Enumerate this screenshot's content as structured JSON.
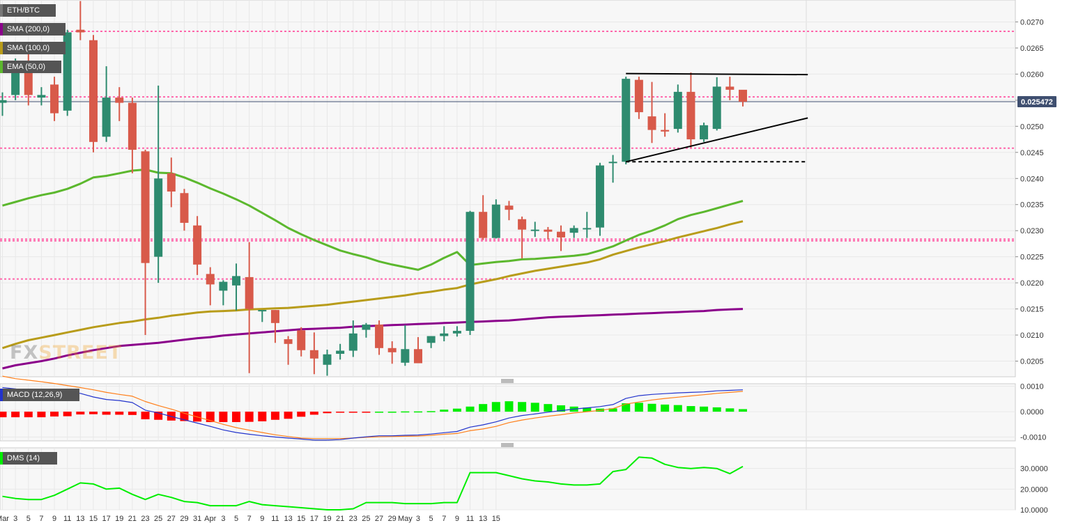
{
  "colors": {
    "up": "#2e8b6f",
    "down": "#d85a4a",
    "sma200": "#8b008b",
    "sma100": "#b89c1a",
    "ema50": "#5cb82e",
    "level_line": "#ff66aa",
    "price_line": "#3f4f70",
    "macd_line": "#2233cc",
    "signal_line": "#ff7f1a",
    "hist_neg": "#ff0000",
    "hist_pos": "#00ee00",
    "dms_plus": "#00ee00",
    "dms_minus": "#ee1111",
    "adx": "#1122aa",
    "pattern": "#000000"
  },
  "legend": {
    "symbol": "ETH/BTC",
    "sma200": "SMA (200,0)",
    "sma100": "SMA (100,0)",
    "ema50": "EMA (50,0)"
  },
  "watermark": {
    "part1": "FX",
    "part2": "STREET"
  },
  "price_label": "0.025472",
  "x_ticks": [
    "Mar",
    "3",
    "5",
    "7",
    "9",
    "11",
    "13",
    "15",
    "17",
    "19",
    "21",
    "23",
    "25",
    "27",
    "29",
    "31",
    "Apr",
    "3",
    "5",
    "7",
    "9",
    "11",
    "13",
    "15",
    "17",
    "19",
    "21",
    "23",
    "25",
    "27",
    "29",
    "May",
    "3",
    "5",
    "7",
    "9",
    "11",
    "13",
    "15"
  ],
  "chart_data": [
    {
      "type": "candlestick",
      "title": "ETH/BTC",
      "y_ticks": [
        "0.0205",
        "0.0210",
        "0.0215",
        "0.0220",
        "0.0225",
        "0.0230",
        "0.0235",
        "0.0240",
        "0.0245",
        "0.0250",
        "0.0255",
        "0.0260",
        "0.0265",
        "0.0270"
      ],
      "ylim": [
        0.0202,
        0.02742
      ],
      "last_price": 0.025472,
      "candles": [
        {
          "o": 0.02545,
          "h": 0.02565,
          "l": 0.0252,
          "c": 0.0255
        },
        {
          "o": 0.0256,
          "h": 0.0263,
          "l": 0.0255,
          "c": 0.0261
        },
        {
          "o": 0.0261,
          "h": 0.0264,
          "l": 0.0254,
          "c": 0.0256
        },
        {
          "o": 0.02555,
          "h": 0.02575,
          "l": 0.0254,
          "c": 0.0256
        },
        {
          "o": 0.0258,
          "h": 0.02595,
          "l": 0.0251,
          "c": 0.02525
        },
        {
          "o": 0.0253,
          "h": 0.02685,
          "l": 0.0252,
          "c": 0.0268
        },
        {
          "o": 0.02685,
          "h": 0.0274,
          "l": 0.02665,
          "c": 0.0268
        },
        {
          "o": 0.02665,
          "h": 0.02675,
          "l": 0.0245,
          "c": 0.0247
        },
        {
          "o": 0.0248,
          "h": 0.02615,
          "l": 0.0247,
          "c": 0.02555
        },
        {
          "o": 0.02555,
          "h": 0.02575,
          "l": 0.0251,
          "c": 0.02545
        },
        {
          "o": 0.02545,
          "h": 0.02555,
          "l": 0.0241,
          "c": 0.02455
        },
        {
          "o": 0.02452,
          "h": 0.02455,
          "l": 0.021,
          "c": 0.02238
        },
        {
          "o": 0.0225,
          "h": 0.02578,
          "l": 0.022,
          "c": 0.024
        },
        {
          "o": 0.0241,
          "h": 0.0244,
          "l": 0.02345,
          "c": 0.02375
        },
        {
          "o": 0.02372,
          "h": 0.0238,
          "l": 0.023,
          "c": 0.02315
        },
        {
          "o": 0.0231,
          "h": 0.02328,
          "l": 0.02215,
          "c": 0.02235
        },
        {
          "o": 0.02217,
          "h": 0.0223,
          "l": 0.02157,
          "c": 0.02197
        },
        {
          "o": 0.02185,
          "h": 0.02205,
          "l": 0.02157,
          "c": 0.02202
        },
        {
          "o": 0.02195,
          "h": 0.02237,
          "l": 0.02147,
          "c": 0.02213
        },
        {
          "o": 0.02211,
          "h": 0.02278,
          "l": 0.02027,
          "c": 0.0215
        },
        {
          "o": 0.02148,
          "h": 0.02148,
          "l": 0.02125,
          "c": 0.02148
        },
        {
          "o": 0.02148,
          "h": 0.02148,
          "l": 0.02085,
          "c": 0.02123
        },
        {
          "o": 0.02092,
          "h": 0.02098,
          "l": 0.02043,
          "c": 0.02083
        },
        {
          "o": 0.02109,
          "h": 0.02115,
          "l": 0.02059,
          "c": 0.02071
        },
        {
          "o": 0.02071,
          "h": 0.02105,
          "l": 0.02025,
          "c": 0.02055
        },
        {
          "o": 0.02043,
          "h": 0.02072,
          "l": 0.02022,
          "c": 0.02063
        },
        {
          "o": 0.02064,
          "h": 0.02083,
          "l": 0.02053,
          "c": 0.0207
        },
        {
          "o": 0.0207,
          "h": 0.02128,
          "l": 0.02058,
          "c": 0.02103
        },
        {
          "o": 0.0211,
          "h": 0.02123,
          "l": 0.02095,
          "c": 0.0212
        },
        {
          "o": 0.0212,
          "h": 0.02128,
          "l": 0.02062,
          "c": 0.02075
        },
        {
          "o": 0.02075,
          "h": 0.02088,
          "l": 0.02045,
          "c": 0.02067
        },
        {
          "o": 0.02047,
          "h": 0.02119,
          "l": 0.02041,
          "c": 0.02073
        },
        {
          "o": 0.02073,
          "h": 0.02096,
          "l": 0.0205,
          "c": 0.02046
        },
        {
          "o": 0.02085,
          "h": 0.02098,
          "l": 0.02075,
          "c": 0.02098
        },
        {
          "o": 0.02098,
          "h": 0.02117,
          "l": 0.02088,
          "c": 0.02103
        },
        {
          "o": 0.02103,
          "h": 0.02117,
          "l": 0.02097,
          "c": 0.02108
        },
        {
          "o": 0.02108,
          "h": 0.02338,
          "l": 0.021,
          "c": 0.02336
        },
        {
          "o": 0.02336,
          "h": 0.02368,
          "l": 0.02282,
          "c": 0.02286
        },
        {
          "o": 0.02286,
          "h": 0.0236,
          "l": 0.02285,
          "c": 0.0235
        },
        {
          "o": 0.02348,
          "h": 0.02357,
          "l": 0.0232,
          "c": 0.0234
        },
        {
          "o": 0.02322,
          "h": 0.02327,
          "l": 0.02247,
          "c": 0.02302
        },
        {
          "o": 0.02302,
          "h": 0.02317,
          "l": 0.02288,
          "c": 0.02302
        },
        {
          "o": 0.02302,
          "h": 0.02307,
          "l": 0.02283,
          "c": 0.02298
        },
        {
          "o": 0.02298,
          "h": 0.0231,
          "l": 0.02261,
          "c": 0.02287
        },
        {
          "o": 0.02296,
          "h": 0.0231,
          "l": 0.02286,
          "c": 0.02305
        },
        {
          "o": 0.02305,
          "h": 0.02336,
          "l": 0.02286,
          "c": 0.02305
        },
        {
          "o": 0.02306,
          "h": 0.0243,
          "l": 0.0229,
          "c": 0.02425
        },
        {
          "o": 0.02432,
          "h": 0.02445,
          "l": 0.02392,
          "c": 0.02432
        },
        {
          "o": 0.02432,
          "h": 0.02595,
          "l": 0.02427,
          "c": 0.02591
        },
        {
          "o": 0.02589,
          "h": 0.02595,
          "l": 0.02514,
          "c": 0.02527
        },
        {
          "o": 0.02519,
          "h": 0.02585,
          "l": 0.02468,
          "c": 0.02493
        },
        {
          "o": 0.02493,
          "h": 0.02525,
          "l": 0.0248,
          "c": 0.0249
        },
        {
          "o": 0.02495,
          "h": 0.0258,
          "l": 0.02488,
          "c": 0.02566
        },
        {
          "o": 0.02566,
          "h": 0.02603,
          "l": 0.02459,
          "c": 0.02475
        },
        {
          "o": 0.02475,
          "h": 0.02507,
          "l": 0.0247,
          "c": 0.02502
        },
        {
          "o": 0.02495,
          "h": 0.02594,
          "l": 0.02492,
          "c": 0.02576
        },
        {
          "o": 0.02576,
          "h": 0.02595,
          "l": 0.0255,
          "c": 0.0257
        },
        {
          "o": 0.0257,
          "h": 0.02568,
          "l": 0.02538,
          "c": 0.02547
        }
      ],
      "ema50": [
        0.02348,
        0.02355,
        0.02362,
        0.02368,
        0.02373,
        0.0238,
        0.0239,
        0.02402,
        0.02405,
        0.0241,
        0.02415,
        0.02417,
        0.02411,
        0.0241,
        0.02402,
        0.02392,
        0.02381,
        0.02371,
        0.0236,
        0.02348,
        0.02334,
        0.0232,
        0.02305,
        0.02293,
        0.02282,
        0.02272,
        0.02262,
        0.02255,
        0.02249,
        0.02241,
        0.02235,
        0.0223,
        0.02225,
        0.02235,
        0.02248,
        0.02259,
        0.02234,
        0.02237,
        0.0224,
        0.02242,
        0.02245,
        0.02246,
        0.02248,
        0.0225,
        0.02252,
        0.02255,
        0.02262,
        0.0227,
        0.02281,
        0.02292,
        0.023,
        0.0231,
        0.02322,
        0.0233,
        0.02336,
        0.02343,
        0.0235,
        0.02357
      ],
      "sma100": [
        0.02075,
        0.02083,
        0.0209,
        0.02095,
        0.021,
        0.02105,
        0.0211,
        0.02115,
        0.02119,
        0.02123,
        0.02126,
        0.0213,
        0.02133,
        0.02137,
        0.0214,
        0.02143,
        0.02145,
        0.02146,
        0.02147,
        0.02149,
        0.0215,
        0.02151,
        0.02152,
        0.02154,
        0.02156,
        0.02158,
        0.02161,
        0.02164,
        0.02167,
        0.0217,
        0.02173,
        0.02176,
        0.0218,
        0.02183,
        0.02187,
        0.0219,
        0.02197,
        0.02202,
        0.02207,
        0.02213,
        0.02218,
        0.02223,
        0.02227,
        0.02231,
        0.02235,
        0.02239,
        0.02245,
        0.02254,
        0.02261,
        0.02268,
        0.02274,
        0.0228,
        0.02287,
        0.02293,
        0.02299,
        0.02305,
        0.02312,
        0.02318
      ],
      "sma200": [
        0.02036,
        0.02042,
        0.02046,
        0.0205,
        0.02055,
        0.02061,
        0.02066,
        0.02071,
        0.02075,
        0.02079,
        0.02081,
        0.02083,
        0.02085,
        0.02088,
        0.02091,
        0.02094,
        0.02096,
        0.02099,
        0.02101,
        0.02103,
        0.02105,
        0.02107,
        0.02109,
        0.02111,
        0.02112,
        0.02113,
        0.02114,
        0.02116,
        0.02117,
        0.02118,
        0.02119,
        0.0212,
        0.02121,
        0.02122,
        0.02123,
        0.02124,
        0.02125,
        0.02126,
        0.02127,
        0.02128,
        0.0213,
        0.02132,
        0.02134,
        0.02135,
        0.02136,
        0.02137,
        0.02138,
        0.02139,
        0.0214,
        0.02141,
        0.02142,
        0.02143,
        0.02144,
        0.02145,
        0.02146,
        0.02148,
        0.02149,
        0.0215
      ],
      "horizontal_levels": [
        0.02682,
        0.025564,
        0.02458,
        0.022838,
        0.022806,
        0.022074
      ],
      "pattern": {
        "upper": [
          {
            "i": 48,
            "y": 0.02601
          },
          {
            "i": 62,
            "y": 0.02599
          }
        ],
        "lower": [
          {
            "i": 48,
            "y": 0.02432
          },
          {
            "i": 62,
            "y": 0.02516
          }
        ],
        "dashed": {
          "i0": 48,
          "i1": 62,
          "y": 0.02432
        }
      }
    },
    {
      "type": "bar",
      "title": "MACD (12,26,9)",
      "y_ticks": [
        "0.0010",
        "0.0000",
        "-0.0010"
      ],
      "ylim": [
        -0.00115,
        0.0011
      ],
      "histogram": [
        -0.00022,
        -0.00022,
        -0.00022,
        -0.00022,
        -0.00019,
        -0.00018,
        -0.00011,
        -0.0001,
        -0.00012,
        -0.00012,
        -0.00013,
        -0.0003,
        -0.00032,
        -0.00035,
        -0.00037,
        -0.00039,
        -0.00041,
        -0.00041,
        -0.00041,
        -0.0004,
        -0.00038,
        -0.00032,
        -0.00028,
        -0.0002,
        -0.00012,
        -6e-05,
        -3e-05,
        -1e-05,
        -1e-05,
        0.0,
        0.0,
        1e-05,
        1e-05,
        2e-05,
        8e-05,
        0.00012,
        0.0002,
        0.0003,
        0.00038,
        0.00041,
        0.00038,
        0.00035,
        0.0003,
        0.00025,
        0.0002,
        0.00016,
        0.00012,
        0.00013,
        0.00033,
        0.00035,
        0.00031,
        0.00028,
        0.00026,
        0.00022,
        0.0002,
        0.00017,
        0.00013,
        0.0001
      ],
      "macd": [
        0.00095,
        0.0009,
        0.00082,
        0.00082,
        0.00081,
        0.00075,
        0.00072,
        0.00058,
        0.00048,
        0.00044,
        0.00036,
        6e-05,
        -5e-05,
        -0.00019,
        -0.00032,
        -0.00045,
        -0.00058,
        -0.00072,
        -0.00082,
        -0.00089,
        -0.00095,
        -0.001,
        -0.00104,
        -0.00108,
        -0.00112,
        -0.00112,
        -0.0011,
        -0.00104,
        -0.00099,
        -0.00095,
        -0.00095,
        -0.00093,
        -0.00092,
        -0.00088,
        -0.00083,
        -0.00078,
        -0.00061,
        -0.00052,
        -0.0004,
        -0.00025,
        -0.00015,
        -9e-05,
        -2e-05,
        4e-05,
        0.0001,
        0.00015,
        0.0002,
        0.00028,
        0.00052,
        0.00063,
        0.00068,
        0.00071,
        0.00074,
        0.00076,
        0.00078,
        0.00082,
        0.00084,
        0.00086
      ],
      "signal": [
        0.0014,
        0.0013,
        0.00124,
        0.00118,
        0.00111,
        0.00103,
        0.00095,
        0.00086,
        0.00076,
        0.00068,
        0.00061,
        0.0004,
        0.00024,
        0.0001,
        -6e-05,
        -0.00021,
        -0.00035,
        -0.0005,
        -0.00063,
        -0.00073,
        -0.00082,
        -0.00091,
        -0.00098,
        -0.00104,
        -0.00106,
        -0.00106,
        -0.00106,
        -0.00104,
        -0.00101,
        -0.00099,
        -0.00098,
        -0.00097,
        -0.00096,
        -0.00093,
        -0.00089,
        -0.00086,
        -0.00075,
        -0.00068,
        -0.00058,
        -0.00043,
        -0.00033,
        -0.00025,
        -0.00018,
        -0.00012,
        -5e-05,
        0.0,
        5e-05,
        0.00012,
        0.0003,
        0.00038,
        0.00046,
        0.00052,
        0.00057,
        0.00062,
        0.00067,
        0.00072,
        0.00076,
        0.0008
      ]
    },
    {
      "type": "line",
      "title": "DMS (14)",
      "y_ticks": [
        "30.0000",
        "20.0000",
        "10.0000"
      ],
      "ylim": [
        10,
        40
      ],
      "plus_di": [
        16.5,
        15.5,
        15.0,
        15.0,
        17.0,
        20.0,
        23.0,
        22.5,
        20.0,
        20.5,
        17.5,
        15.0,
        17.5,
        16.0,
        14.0,
        13.5,
        12.0,
        12.0,
        12.0,
        14.0,
        12.5,
        12.0,
        11.5,
        11.0,
        10.5,
        10.0,
        10.0,
        10.5,
        13.5,
        13.5,
        13.5,
        13.0,
        13.0,
        13.0,
        13.5,
        13.5,
        28.0,
        28.0,
        28.0,
        26.5,
        25.0,
        24.0,
        23.5,
        22.5,
        22.0,
        22.0,
        22.5,
        28.5,
        29.5,
        35.5,
        35.0,
        32.0,
        30.5,
        30.0,
        30.5,
        30.0,
        27.5,
        31.0
      ]
    }
  ]
}
